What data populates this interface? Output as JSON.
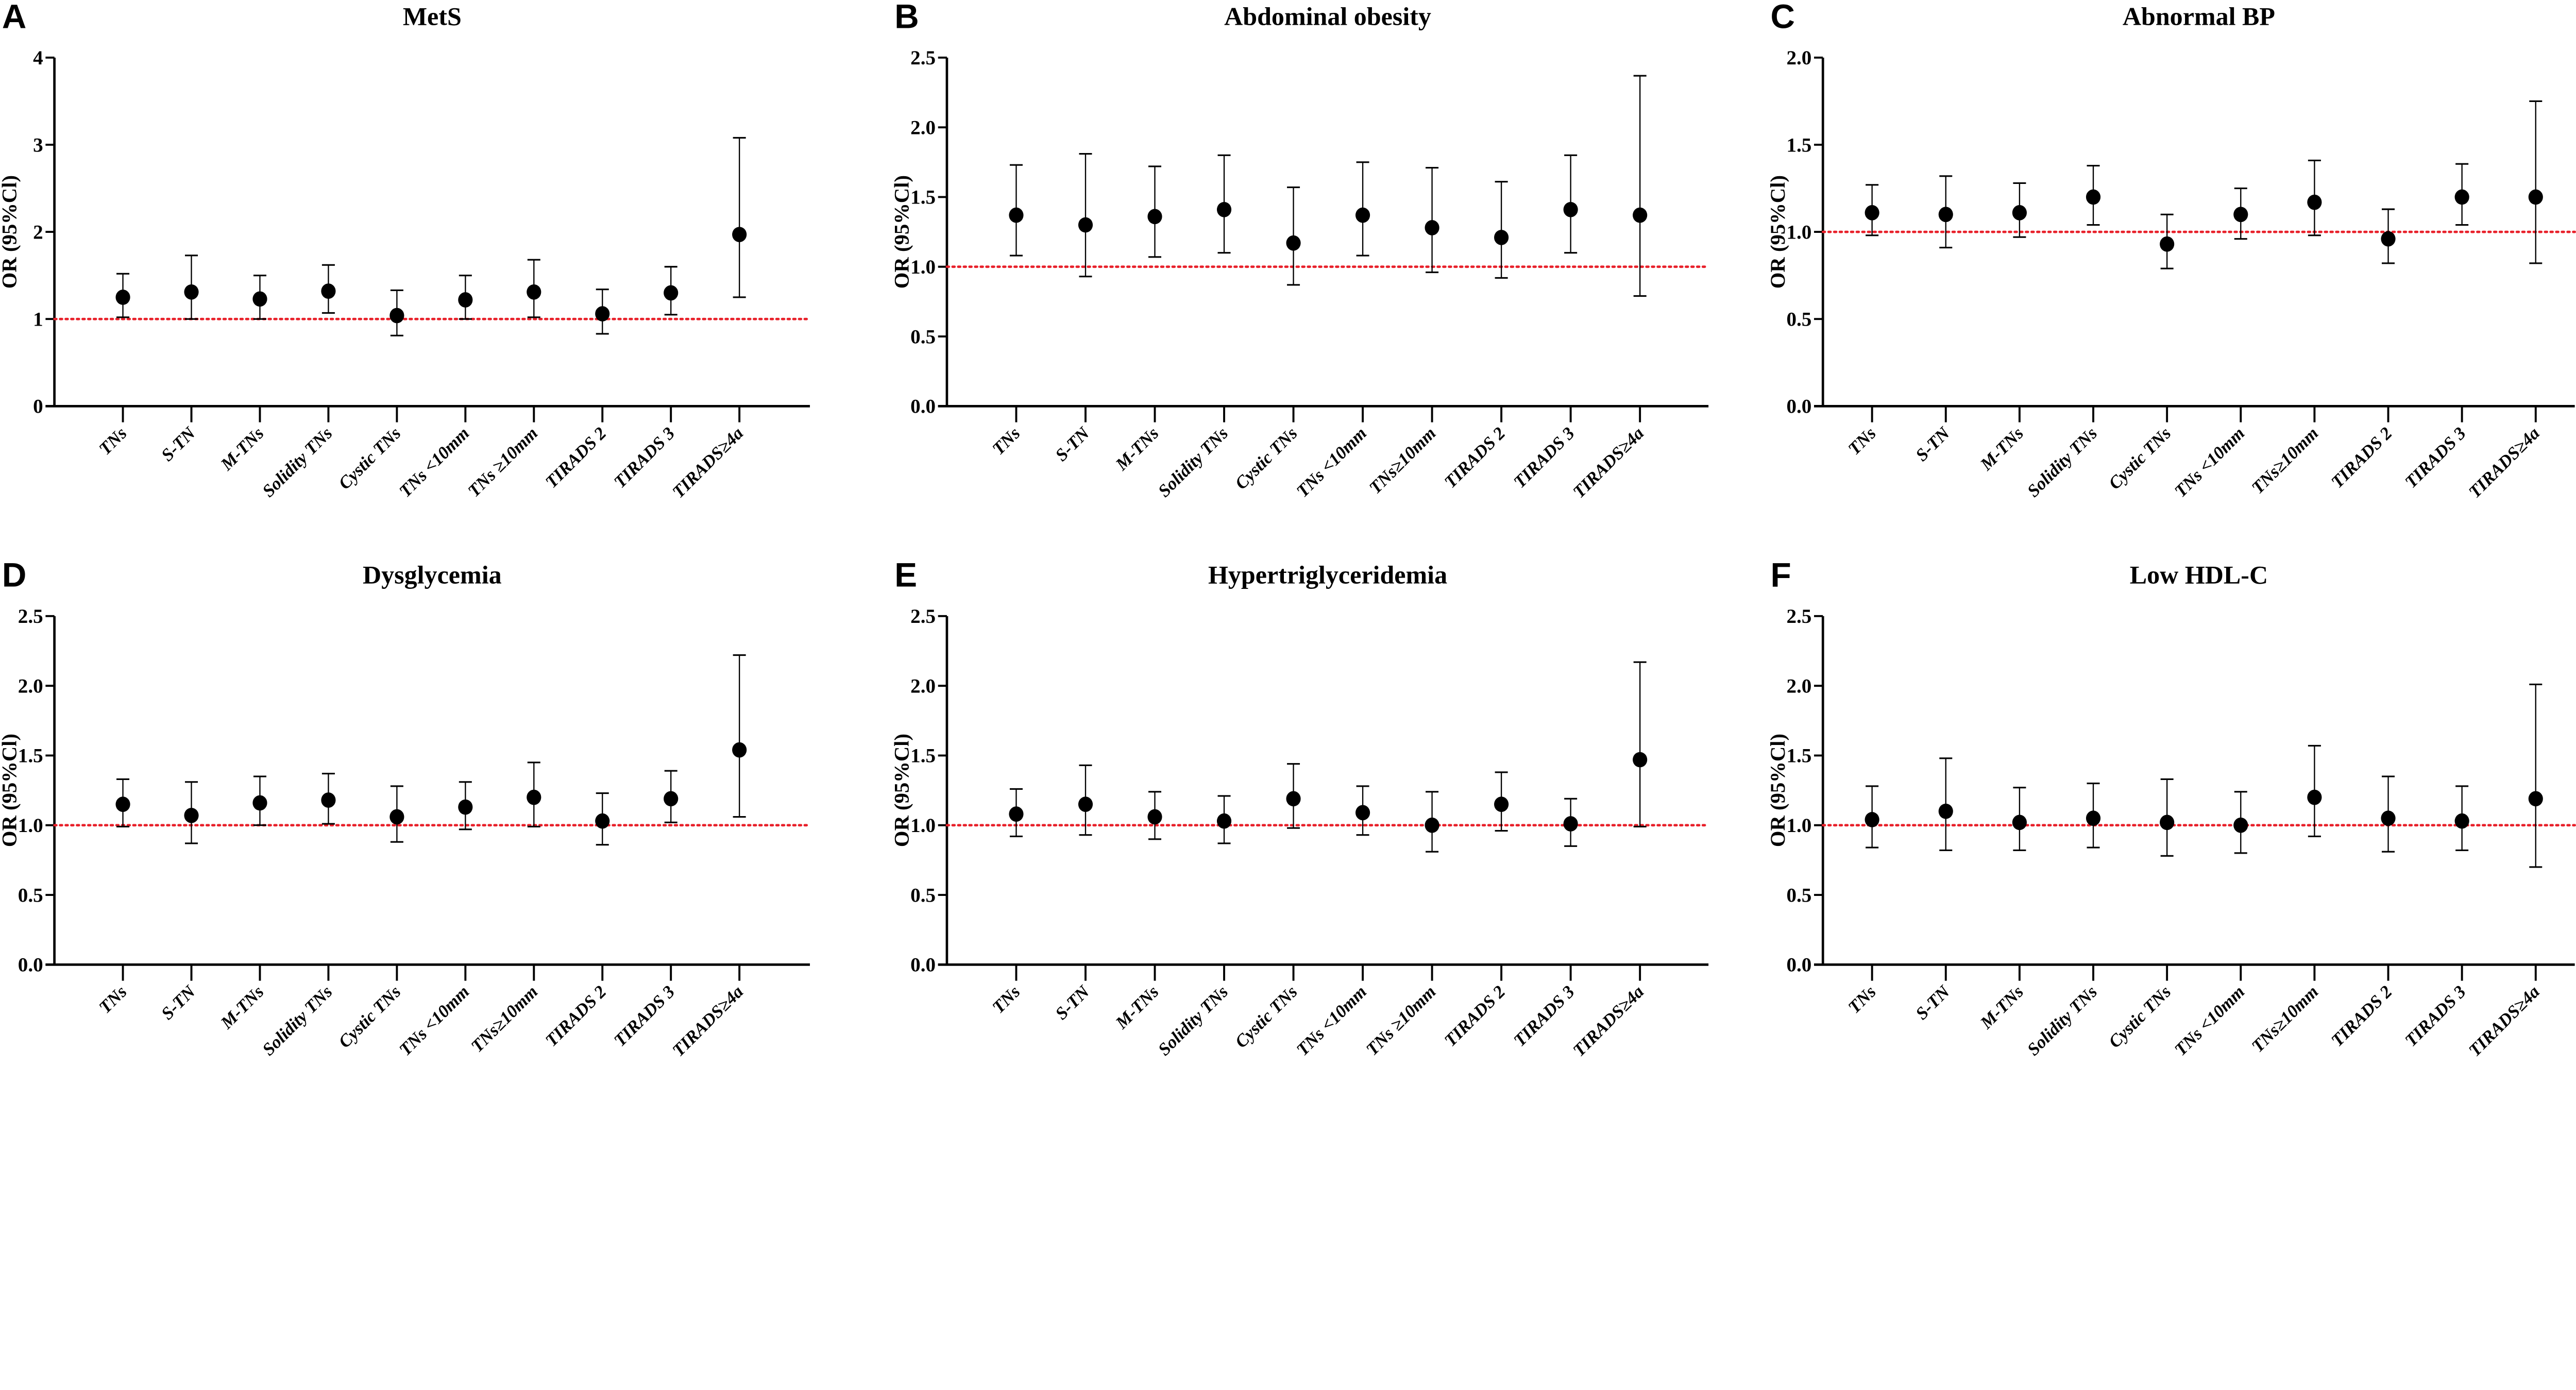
{
  "chart_data": [
    {
      "panel": "A",
      "title": "MetS",
      "type": "scatter",
      "ylabel": "OR (95%Cl)",
      "ylim": [
        0,
        4
      ],
      "yticks": [
        "0",
        "1",
        "2",
        "3",
        "4"
      ],
      "yticks_values": [
        0,
        1,
        2,
        3,
        4
      ],
      "reference_line": 1,
      "categories": [
        "TNs",
        "S-TN",
        "M-TNs",
        "Solidity TNs",
        "Cystic TNs",
        "TNs <10mm",
        "TNs ≥10mm",
        "TIRADS  2",
        "TIRADS  3",
        "TIRADS≥4a"
      ],
      "or": [
        1.25,
        1.31,
        1.23,
        1.32,
        1.04,
        1.22,
        1.31,
        1.06,
        1.3,
        1.97
      ],
      "lower": [
        1.02,
        1.0,
        1.0,
        1.07,
        0.81,
        1.0,
        1.02,
        0.83,
        1.05,
        1.25
      ],
      "upper": [
        1.52,
        1.73,
        1.5,
        1.62,
        1.33,
        1.5,
        1.68,
        1.34,
        1.6,
        3.08
      ]
    },
    {
      "panel": "B",
      "title": "Abdominal obesity",
      "type": "scatter",
      "ylabel": "OR (95%Cl)",
      "ylim": [
        0,
        2.5
      ],
      "yticks": [
        "0.0",
        "0.5",
        "1.0",
        "1.5",
        "2.0",
        "2.5"
      ],
      "yticks_values": [
        0,
        0.5,
        1,
        1.5,
        2,
        2.5
      ],
      "reference_line": 1,
      "categories": [
        "TNs",
        "S-TN",
        "M-TNs",
        "Solidity TNs",
        "Cystic TNs",
        "TNs <10mm",
        "TNs≥10mm",
        "TIRADS 2",
        "TIRADS 3",
        "TIRADS≥4a"
      ],
      "or": [
        1.37,
        1.3,
        1.36,
        1.41,
        1.17,
        1.37,
        1.28,
        1.21,
        1.41,
        1.37
      ],
      "lower": [
        1.08,
        0.93,
        1.07,
        1.1,
        0.87,
        1.08,
        0.96,
        0.92,
        1.1,
        0.79
      ],
      "upper": [
        1.73,
        1.81,
        1.72,
        1.8,
        1.57,
        1.75,
        1.71,
        1.61,
        1.8,
        2.37
      ]
    },
    {
      "panel": "C",
      "title": "Abnormal BP",
      "type": "scatter",
      "ylabel": "OR (95%Cl)",
      "ylim": [
        0,
        2
      ],
      "yticks": [
        "0.0",
        "0.5",
        "1.0",
        "1.5",
        "2.0"
      ],
      "yticks_values": [
        0,
        0.5,
        1,
        1.5,
        2
      ],
      "reference_line": 1,
      "categories": [
        "TNs",
        "S-TN",
        "M-TNs",
        "Solidity TNs",
        "Cystic TNs",
        "TNs <10mm",
        "TNs≥10mm",
        "TIRADS 2",
        "TIRADS 3",
        "TIRADS≥4a"
      ],
      "or": [
        1.11,
        1.1,
        1.11,
        1.2,
        0.93,
        1.1,
        1.17,
        0.96,
        1.2,
        1.2
      ],
      "lower": [
        0.98,
        0.91,
        0.97,
        1.04,
        0.79,
        0.96,
        0.98,
        0.82,
        1.04,
        0.82
      ],
      "upper": [
        1.27,
        1.32,
        1.28,
        1.38,
        1.1,
        1.25,
        1.41,
        1.13,
        1.39,
        1.75
      ]
    },
    {
      "panel": "D",
      "title": "Dysglycemia",
      "type": "scatter",
      "ylabel": "OR (95%Cl)",
      "ylim": [
        0,
        2.5
      ],
      "yticks": [
        "0.0",
        "0.5",
        "1.0",
        "1.5",
        "2.0",
        "2.5"
      ],
      "yticks_values": [
        0,
        0.5,
        1,
        1.5,
        2,
        2.5
      ],
      "reference_line": 1,
      "categories": [
        "TNs",
        "S-TN",
        "M-TNs",
        "Solidity TNs",
        "Cystic TNs",
        "TNs <10mm",
        "TNs≥10mm",
        "TIRADS 2",
        "TIRADS 3",
        "TIRADS≥4a"
      ],
      "or": [
        1.15,
        1.07,
        1.16,
        1.18,
        1.06,
        1.13,
        1.2,
        1.03,
        1.19,
        1.54
      ],
      "lower": [
        0.99,
        0.87,
        1.0,
        1.01,
        0.88,
        0.97,
        0.99,
        0.86,
        1.02,
        1.06
      ],
      "upper": [
        1.33,
        1.31,
        1.35,
        1.37,
        1.28,
        1.31,
        1.45,
        1.23,
        1.39,
        2.22
      ]
    },
    {
      "panel": "E",
      "title": "Hypertriglyceridemia",
      "type": "scatter",
      "ylabel": "OR (95%Cl)",
      "ylim": [
        0,
        2.5
      ],
      "yticks": [
        "0.0",
        "0.5",
        "1.0",
        "1.5",
        "2.0",
        "2.5"
      ],
      "yticks_values": [
        0,
        0.5,
        1,
        1.5,
        2,
        2.5
      ],
      "reference_line": 1,
      "categories": [
        "TNs",
        "S-TN",
        "M-TNs",
        "Solidity TNs",
        "Cystic TNs",
        "TNs <10mm",
        "TNs ≥10mm",
        "TIRADS 2",
        "TIRADS 3",
        "TIRADS≥4a"
      ],
      "or": [
        1.08,
        1.15,
        1.06,
        1.03,
        1.19,
        1.09,
        1.0,
        1.15,
        1.01,
        1.47
      ],
      "lower": [
        0.92,
        0.93,
        0.9,
        0.87,
        0.98,
        0.93,
        0.81,
        0.96,
        0.85,
        0.99
      ],
      "upper": [
        1.26,
        1.43,
        1.24,
        1.21,
        1.44,
        1.28,
        1.24,
        1.38,
        1.19,
        2.17
      ]
    },
    {
      "panel": "F",
      "title": "Low HDL-C",
      "type": "scatter",
      "ylabel": "OR (95%Cl)",
      "ylim": [
        0,
        2.5
      ],
      "yticks": [
        "0.0",
        "0.5",
        "1.0",
        "1.5",
        "2.0",
        "2.5"
      ],
      "yticks_values": [
        0,
        0.5,
        1,
        1.5,
        2,
        2.5
      ],
      "reference_line": 1,
      "categories": [
        "TNs",
        "S-TN",
        "M-TNs",
        "Solidity TNs",
        "Cystic TNs",
        "TNs <10mm",
        "TNs≥10mm",
        "TIRADS 2",
        "TIRADS 3",
        "TIRADS≥4a"
      ],
      "or": [
        1.04,
        1.1,
        1.02,
        1.05,
        1.02,
        1.0,
        1.2,
        1.05,
        1.03,
        1.19
      ],
      "lower": [
        0.84,
        0.82,
        0.82,
        0.84,
        0.78,
        0.8,
        0.92,
        0.81,
        0.82,
        0.7
      ],
      "upper": [
        1.28,
        1.48,
        1.27,
        1.3,
        1.33,
        1.24,
        1.57,
        1.35,
        1.28,
        2.01
      ]
    }
  ],
  "colors": {
    "points": "#000000",
    "reference_line": "#e8202a"
  }
}
